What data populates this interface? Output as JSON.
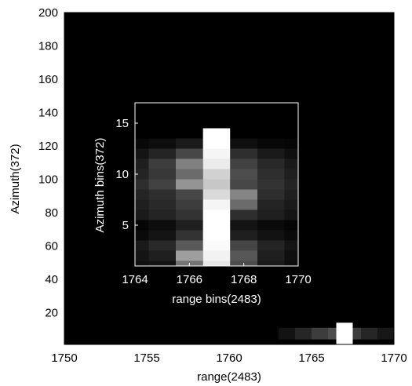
{
  "chart_data": [
    {
      "type": "heatmap",
      "xlabel": "range(2483)",
      "ylabel": "Azimuth(372)",
      "xlim": [
        1750,
        1770
      ],
      "ylim": [
        1,
        200
      ],
      "xticks": [
        1750,
        1755,
        1760,
        1765,
        1770
      ],
      "yticks": [
        20,
        40,
        60,
        80,
        100,
        120,
        140,
        160,
        180,
        200
      ],
      "colormap": "gray",
      "background": "#000000",
      "bright_target": {
        "range": [
          1766.5,
          1767.5
        ],
        "azimuth": [
          1,
          14
        ],
        "peak_intensity": 1.0
      },
      "sidelobe": {
        "range": [
          1763,
          1770
        ],
        "azimuth": [
          4,
          11
        ],
        "intensity": 0.3
      }
    },
    {
      "type": "heatmap",
      "xlabel": "range bins(2483)",
      "ylabel": "Azimuth bins(372)",
      "xlim": [
        1764,
        1770
      ],
      "ylim": [
        1,
        17
      ],
      "xticks": [
        1764,
        1766,
        1768,
        1770
      ],
      "yticks": [
        5,
        10,
        15
      ],
      "colormap": "gray",
      "columns": [
        1764,
        1765,
        1766,
        1767,
        1768,
        1769,
        1770
      ],
      "rows": [
        1,
        2,
        3,
        4,
        5,
        6,
        7,
        8,
        9,
        10,
        11,
        12,
        13,
        14,
        15,
        16
      ],
      "values": [
        [
          0.06,
          0.08,
          0.45,
          0.9,
          0.3,
          0.1,
          0.05
        ],
        [
          0.08,
          0.12,
          0.62,
          0.95,
          0.34,
          0.12,
          0.06
        ],
        [
          0.1,
          0.16,
          0.35,
          0.98,
          0.27,
          0.14,
          0.08
        ],
        [
          0.04,
          0.08,
          0.2,
          1.0,
          0.12,
          0.07,
          0.04
        ],
        [
          0.02,
          0.05,
          0.12,
          1.0,
          0.08,
          0.04,
          0.02
        ],
        [
          0.1,
          0.14,
          0.2,
          1.0,
          0.18,
          0.12,
          0.08
        ],
        [
          0.12,
          0.16,
          0.24,
          0.96,
          0.42,
          0.14,
          0.1
        ],
        [
          0.14,
          0.18,
          0.28,
          0.85,
          0.52,
          0.18,
          0.12
        ],
        [
          0.18,
          0.26,
          0.58,
          0.78,
          0.28,
          0.2,
          0.14
        ],
        [
          0.14,
          0.22,
          0.42,
          0.82,
          0.3,
          0.18,
          0.12
        ],
        [
          0.12,
          0.24,
          0.5,
          0.92,
          0.26,
          0.16,
          0.1
        ],
        [
          0.08,
          0.14,
          0.28,
          0.96,
          0.18,
          0.1,
          0.06
        ],
        [
          0.03,
          0.05,
          0.1,
          1.0,
          0.06,
          0.03,
          0.02
        ],
        [
          0.0,
          0.0,
          0.0,
          1.0,
          0.0,
          0.0,
          0.0
        ],
        [
          0.0,
          0.0,
          0.0,
          0.0,
          0.0,
          0.0,
          0.0
        ],
        [
          0.0,
          0.0,
          0.0,
          0.0,
          0.0,
          0.0,
          0.0
        ]
      ]
    }
  ]
}
